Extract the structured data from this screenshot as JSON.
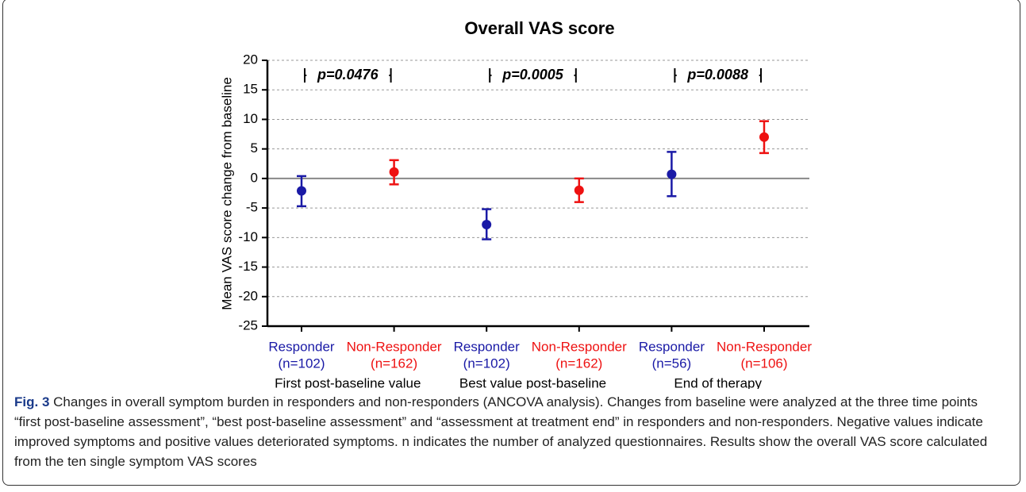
{
  "chart_data": {
    "type": "errorbar",
    "title": "Overall VAS score",
    "y_label": "Mean  VAS score change from baseline",
    "categories": [
      "Responder",
      "Non-Responder",
      "Responder",
      "Non-Responder",
      "Responder",
      "Non-Responder"
    ],
    "n_labels": [
      "(n=102)",
      "(n=162)",
      "(n=102)",
      "(n=162)",
      "(n=56)",
      "(n=106)"
    ],
    "colors": [
      "#1a1aa6",
      "#ee1111",
      "#1a1aa6",
      "#ee1111",
      "#1a1aa6",
      "#ee1111"
    ],
    "values": [
      -2.1,
      1.1,
      -7.8,
      -2,
      0.7,
      7
    ],
    "ci_low": [
      -4.7,
      -1,
      -10.3,
      -4,
      -3,
      4.3
    ],
    "ci_high": [
      0.4,
      3.1,
      -5.2,
      0,
      4.5,
      9.7
    ],
    "groups": [
      {
        "label": "First post-baseline value",
        "p_label": "p=0.0476"
      },
      {
        "label": "Best value post-baseline",
        "p_label": "p=0.0005"
      },
      {
        "label": "End of therapy",
        "p_label": "p=0.0088"
      }
    ],
    "ylim": [
      -25,
      20
    ],
    "yticks": [
      -25,
      -20,
      -15,
      -10,
      -5,
      0,
      5,
      10,
      15,
      20
    ],
    "grid": true
  },
  "caption": {
    "label": "Fig. 3",
    "text": "Changes in overall symptom burden in responders and non-responders (ANCOVA analysis). Changes from baseline were analyzed at the three time points “first post-baseline assessment”, “best post-baseline assessment” and “assessment at treatment end” in responders and non-responders. Negative values indicate improved symptoms and positive values deteriorated symptoms. n indicates the number of analyzed questionnaires. Results show the overall VAS score calculated from the ten single symptom VAS scores"
  }
}
